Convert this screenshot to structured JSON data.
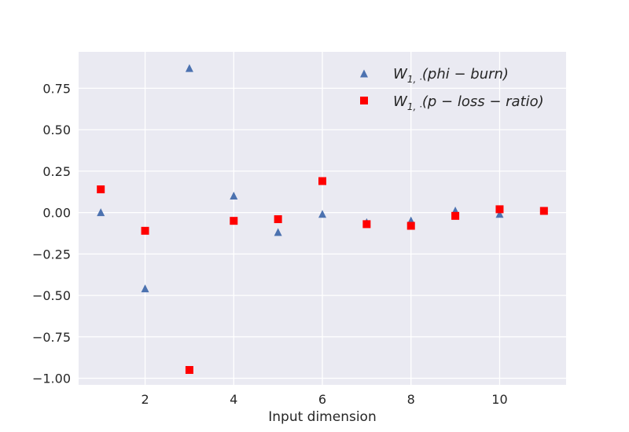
{
  "chart_data": {
    "type": "scatter",
    "title": "",
    "xlabel": "Input dimension",
    "ylabel": "",
    "xlim": [
      0.5,
      11.5
    ],
    "ylim": [
      -1.04,
      0.97
    ],
    "grid": true,
    "legend_position": "top-right",
    "x_ticks": [
      2,
      4,
      6,
      8,
      10
    ],
    "y_ticks": [
      0.75,
      0.5,
      0.25,
      0.0,
      -0.25,
      -0.5,
      -0.75,
      -1.0
    ],
    "x_tick_labels": [
      "2",
      "4",
      "6",
      "8",
      "10"
    ],
    "y_tick_labels": [
      "0.75",
      "0.50",
      "0.25",
      "0.00",
      "−0.25",
      "−0.50",
      "−0.75",
      "−1.00"
    ],
    "series": [
      {
        "name": "W1,·(phi − burn)",
        "marker": "triangle",
        "color": "#4c72b0",
        "points": [
          [
            1,
            0.0
          ],
          [
            2,
            -0.46
          ],
          [
            3,
            0.87
          ],
          [
            4,
            0.1
          ],
          [
            5,
            -0.12
          ],
          [
            6,
            -0.01
          ],
          [
            7,
            -0.06
          ],
          [
            8,
            -0.05
          ],
          [
            9,
            0.01
          ],
          [
            10,
            -0.01
          ]
        ]
      },
      {
        "name": "W1,·(p − loss − ratio)",
        "marker": "square",
        "color": "#ff0000",
        "points": [
          [
            1,
            0.14
          ],
          [
            2,
            -0.11
          ],
          [
            3,
            -0.95
          ],
          [
            4,
            -0.05
          ],
          [
            5,
            -0.04
          ],
          [
            6,
            0.19
          ],
          [
            7,
            -0.07
          ],
          [
            8,
            -0.08
          ],
          [
            9,
            -0.02
          ],
          [
            10,
            0.02
          ],
          [
            11,
            0.01
          ]
        ]
      }
    ]
  }
}
